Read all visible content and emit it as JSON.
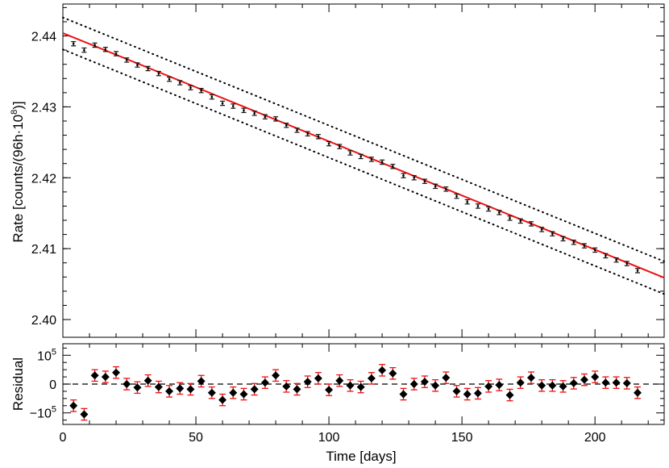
{
  "chart_data": [
    {
      "type": "scatter",
      "panel": "top",
      "ylabel": "Rate [counts/(96h·10⁸)]",
      "ylabel_main": "Rate [counts/(96h·10",
      "ylabel_exp": "8",
      "ylabel_tail": ")]",
      "xlim": [
        0,
        226
      ],
      "ylim": [
        2.3975,
        2.4445
      ],
      "yticks": [
        2.4,
        2.41,
        2.42,
        2.43,
        2.44
      ],
      "ytick_labels": [
        "2.40",
        "2.41",
        "2.42",
        "2.43",
        "2.44"
      ],
      "fit": {
        "name": "fit",
        "color": "#ee1111",
        "x": [
          0,
          226
        ],
        "y": [
          2.4404,
          2.4059
        ]
      },
      "bands": [
        {
          "name": "upper-band",
          "x": [
            0,
            226
          ],
          "y": [
            2.4426,
            2.4082
          ]
        },
        {
          "name": "lower-band",
          "x": [
            0,
            226
          ],
          "y": [
            2.4381,
            2.4036
          ]
        }
      ],
      "series": [
        {
          "name": "rate",
          "x": [
            4,
            8,
            12,
            16,
            20,
            24,
            28,
            32,
            36,
            40,
            44,
            48,
            52,
            56,
            60,
            64,
            68,
            72,
            76,
            80,
            84,
            88,
            92,
            96,
            100,
            104,
            108,
            112,
            116,
            120,
            124,
            128,
            132,
            136,
            140,
            144,
            148,
            152,
            156,
            160,
            164,
            168,
            172,
            176,
            180,
            184,
            188,
            192,
            196,
            200,
            204,
            208,
            212,
            216
          ],
          "y": [
            2.4389,
            2.438,
            2.4387,
            2.4381,
            2.4375,
            2.4366,
            2.4359,
            2.4354,
            2.4347,
            2.4339,
            2.4334,
            2.4327,
            2.4323,
            2.4314,
            2.4305,
            2.4301,
            2.4295,
            2.4291,
            2.4286,
            2.4283,
            2.4274,
            2.4267,
            2.4262,
            2.4258,
            2.4248,
            2.4244,
            2.4235,
            2.423,
            2.4226,
            2.4222,
            2.4216,
            2.4203,
            2.42,
            2.4195,
            2.4188,
            2.4184,
            2.4174,
            2.4166,
            2.416,
            2.4156,
            2.4151,
            2.4143,
            2.4139,
            2.4135,
            2.4127,
            2.4121,
            2.4114,
            2.4109,
            2.4104,
            2.4098,
            2.409,
            2.4084,
            2.4079,
            2.4069
          ],
          "yerr": 0.0003
        }
      ]
    },
    {
      "type": "scatter",
      "panel": "bottom",
      "xlabel": "Time [days]",
      "ylabel": "Residual",
      "xlim": [
        0,
        226
      ],
      "ylim": [
        -140000,
        140000
      ],
      "xticks": [
        0,
        50,
        100,
        150,
        200
      ],
      "xtick_labels": [
        "0",
        "50",
        "100",
        "150",
        "200"
      ],
      "yticks": [
        -100000,
        0,
        100000
      ],
      "ytick_labels": [
        {
          "base": "−10",
          "exp": "5"
        },
        {
          "base": "0",
          "exp": ""
        },
        {
          "base": "10",
          "exp": "5"
        }
      ],
      "zero_line": "dashed",
      "errorbar_color": "#ee1111",
      "series": [
        {
          "name": "residual",
          "x": [
            4,
            8,
            12,
            16,
            20,
            24,
            28,
            32,
            36,
            40,
            44,
            48,
            52,
            56,
            60,
            64,
            68,
            72,
            76,
            80,
            84,
            88,
            92,
            96,
            100,
            104,
            108,
            112,
            116,
            120,
            124,
            128,
            132,
            136,
            140,
            144,
            148,
            152,
            156,
            160,
            164,
            168,
            172,
            176,
            180,
            184,
            188,
            192,
            196,
            200,
            204,
            208,
            212,
            216
          ],
          "y": [
            -75000,
            -105000,
            30000,
            25000,
            40000,
            0,
            -12000,
            12000,
            -10000,
            -25000,
            -15000,
            -18000,
            10000,
            -30000,
            -55000,
            -30000,
            -35000,
            -18000,
            5000,
            30000,
            -8000,
            -18000,
            8000,
            20000,
            -20000,
            12000,
            -5000,
            -10000,
            20000,
            48000,
            37000,
            -35000,
            0,
            8000,
            -5000,
            22000,
            -25000,
            -35000,
            -32000,
            -8000,
            -3000,
            -38000,
            5000,
            22000,
            -5000,
            -5000,
            -8000,
            3000,
            15000,
            25000,
            5000,
            5000,
            3000,
            -30000
          ],
          "yerr": 20000
        }
      ]
    }
  ]
}
